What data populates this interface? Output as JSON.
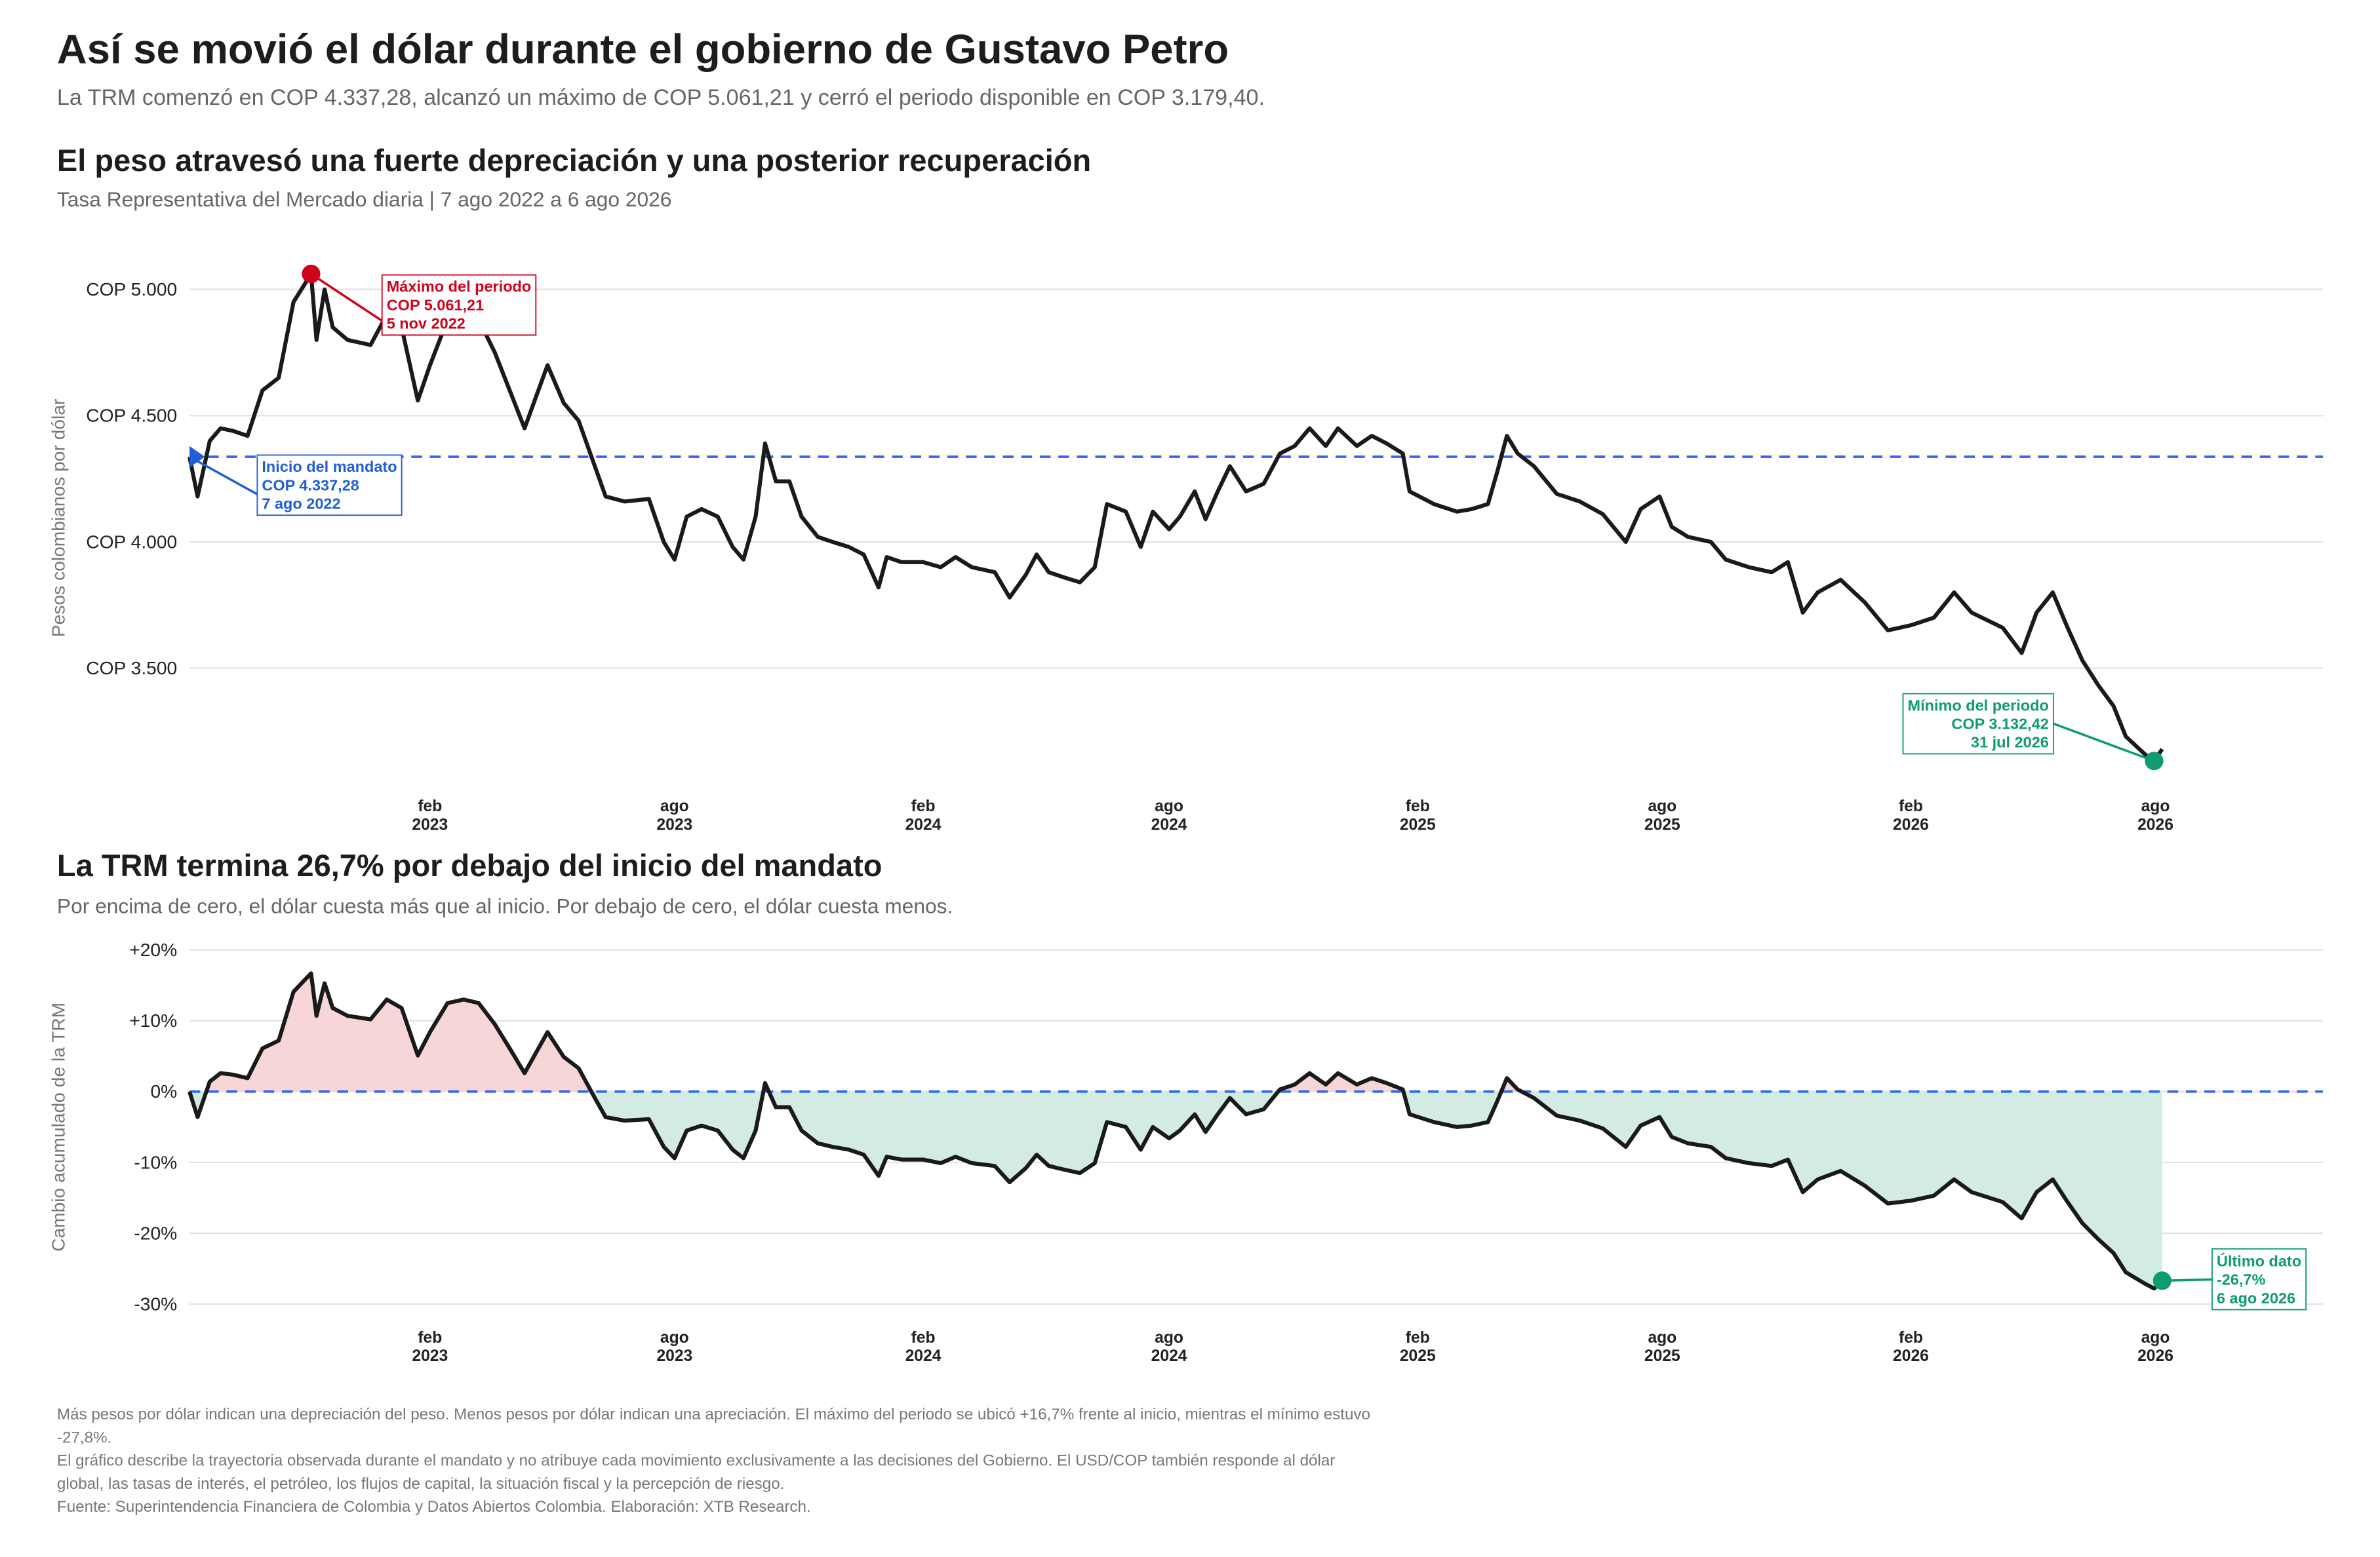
{
  "title": "Así se movió el dólar durante el gobierno de Gustavo Petro",
  "subtitle": "La TRM comenzó en COP 4.337,28, alcanzó un máximo de COP 5.061,21 y cerró el periodo disponible en COP 3.179,40.",
  "footnotes": [
    "Más pesos por dólar indican una depreciación del peso. Menos pesos por dólar indican una apreciación. El máximo del periodo se ubicó +16,7% frente al inicio, mientras el mínimo estuvo -27,8%.",
    "El gráfico describe la trayectoria observada durante el mandato y no atribuye cada movimiento exclusivamente a las decisiones del Gobierno. El USD/COP también responde al dólar global, las tasas de interés, el petróleo, los flujos de capital, la situación fiscal y la percepción de riesgo.",
    "Fuente: Superintendencia Financiera de Colombia y Datos Abiertos Colombia. Elaboración: XTB Research."
  ],
  "chart_data": [
    {
      "type": "line",
      "title": "El peso atravesó una fuerte depreciación y una posterior recuperación",
      "subtitle": "Tasa Representativa del Mercado diaria | 7 ago 2022 a 6 ago 2026",
      "ylabel": "Pesos colombianos por dólar",
      "x": [
        "2022-08-07",
        "2022-08-13",
        "2022-08-22",
        "2022-08-30",
        "2022-09-08",
        "2022-09-19",
        "2022-09-30",
        "2022-10-12",
        "2022-10-23",
        "2022-11-05",
        "2022-11-09",
        "2022-11-15",
        "2022-11-21",
        "2022-12-02",
        "2022-12-19",
        "2022-12-31",
        "2023-01-11",
        "2023-01-23",
        "2023-02-01",
        "2023-02-14",
        "2023-02-26",
        "2023-03-09",
        "2023-03-21",
        "2023-04-01",
        "2023-04-12",
        "2023-04-29",
        "2023-05-11",
        "2023-05-22",
        "2023-06-03",
        "2023-06-11",
        "2023-06-25",
        "2023-07-13",
        "2023-07-24",
        "2023-08-01",
        "2023-08-10",
        "2023-08-21",
        "2023-09-02",
        "2023-09-13",
        "2023-09-21",
        "2023-09-30",
        "2023-10-07",
        "2023-10-15",
        "2023-10-25",
        "2023-11-03",
        "2023-11-15",
        "2023-11-26",
        "2023-12-08",
        "2023-12-19",
        "2023-12-30",
        "2024-01-05",
        "2024-01-16",
        "2024-02-01",
        "2024-02-14",
        "2024-02-25",
        "2024-03-08",
        "2024-03-25",
        "2024-04-05",
        "2024-04-17",
        "2024-04-25",
        "2024-05-04",
        "2024-05-15",
        "2024-05-27",
        "2024-06-07",
        "2024-06-16",
        "2024-06-30",
        "2024-07-11",
        "2024-07-20",
        "2024-08-01",
        "2024-08-09",
        "2024-08-20",
        "2024-08-28",
        "2024-09-06",
        "2024-09-15",
        "2024-09-27",
        "2024-10-10",
        "2024-10-22",
        "2024-11-02",
        "2024-11-13",
        "2024-11-25",
        "2024-12-04",
        "2024-12-18",
        "2024-12-29",
        "2025-01-09",
        "2025-01-21",
        "2025-01-26",
        "2025-02-13",
        "2025-03-02",
        "2025-03-13",
        "2025-03-25",
        "2025-04-01",
        "2025-04-08",
        "2025-04-16",
        "2025-04-28",
        "2025-05-15",
        "2025-06-01",
        "2025-06-18",
        "2025-07-05",
        "2025-07-16",
        "2025-07-30",
        "2025-08-08",
        "2025-08-20",
        "2025-09-06",
        "2025-09-17",
        "2025-10-04",
        "2025-10-21",
        "2025-11-02",
        "2025-11-13",
        "2025-11-24",
        "2025-12-11",
        "2025-12-29",
        "2026-01-15",
        "2026-02-01",
        "2026-02-18",
        "2026-03-05",
        "2026-03-18",
        "2026-04-10",
        "2026-04-24",
        "2026-05-05",
        "2026-05-17",
        "2026-05-28",
        "2026-06-08",
        "2026-06-20",
        "2026-07-01",
        "2026-07-10",
        "2026-07-24",
        "2026-07-31",
        "2026-08-06"
      ],
      "series": [
        {
          "color": "#1a1a1a",
          "values": [
            4337.28,
            4180,
            4400,
            4450,
            4440,
            4420,
            4600,
            4650,
            4950,
            5061.21,
            4800,
            5000,
            4850,
            4800,
            4780,
            4900,
            4850,
            4560,
            4700,
            4880,
            4900,
            4880,
            4750,
            4600,
            4450,
            4700,
            4550,
            4480,
            4300,
            4180,
            4160,
            4170,
            4000,
            3930,
            4100,
            4130,
            4100,
            3980,
            3930,
            4100,
            4390,
            4240,
            4240,
            4100,
            4020,
            4000,
            3980,
            3950,
            3820,
            3940,
            3920,
            3920,
            3900,
            3940,
            3900,
            3880,
            3780,
            3870,
            3950,
            3880,
            3860,
            3840,
            3900,
            4150,
            4120,
            3980,
            4120,
            4050,
            4100,
            4200,
            4090,
            4200,
            4300,
            4200,
            4230,
            4350,
            4380,
            4450,
            4380,
            4450,
            4380,
            4420,
            4390,
            4350,
            4200,
            4150,
            4120,
            4130,
            4150,
            4280,
            4420,
            4350,
            4300,
            4190,
            4160,
            4110,
            4000,
            4130,
            4180,
            4060,
            4020,
            4000,
            3930,
            3900,
            3880,
            3920,
            3720,
            3800,
            3850,
            3760,
            3650,
            3670,
            3700,
            3800,
            3720,
            3660,
            3560,
            3720,
            3800,
            3660,
            3530,
            3430,
            3350,
            3230,
            3160,
            3132.42,
            3179.4
          ]
        }
      ],
      "xlim": [
        "2022-08-07",
        "2026-12-03"
      ],
      "xticks": [
        {
          "value": "2023-02-01",
          "label": [
            "feb",
            "2023"
          ]
        },
        {
          "value": "2023-08-01",
          "label": [
            "ago",
            "2023"
          ]
        },
        {
          "value": "2024-02-01",
          "label": [
            "feb",
            "2024"
          ]
        },
        {
          "value": "2024-08-01",
          "label": [
            "ago",
            "2024"
          ]
        },
        {
          "value": "2025-02-01",
          "label": [
            "feb",
            "2025"
          ]
        },
        {
          "value": "2025-08-01",
          "label": [
            "ago",
            "2025"
          ]
        },
        {
          "value": "2026-02-01",
          "label": [
            "feb",
            "2026"
          ]
        },
        {
          "value": "2026-08-01",
          "label": [
            "ago",
            "2026"
          ]
        }
      ],
      "ylim": [
        3070,
        5120
      ],
      "yticks": [
        {
          "value": 3500,
          "label": "COP 3.500"
        },
        {
          "value": 4000,
          "label": "COP 4.000"
        },
        {
          "value": 4500,
          "label": "COP 4.500"
        },
        {
          "value": 5000,
          "label": "COP 5.000"
        }
      ],
      "grid": true,
      "reference_line": {
        "value": 4337.28,
        "color": "#3366ee"
      },
      "annotations": [
        {
          "label": "Máximo del periodo",
          "value": 5061.21,
          "value_label": "COP 5.061,21",
          "date": "2022-11-05",
          "date_label": "5 nov 2022",
          "color": "#d0021b",
          "marker": "circle"
        },
        {
          "label": "Inicio del mandato",
          "value": 4337.28,
          "value_label": "COP 4.337,28",
          "date": "2022-08-07",
          "date_label": "7 ago 2022",
          "color": "#1f5fd6",
          "marker": "triangle"
        },
        {
          "label": "Mínimo del periodo",
          "value": 3132.42,
          "value_label": "COP 3.132,42",
          "date": "2026-07-31",
          "date_label": "31 jul 2026",
          "color": "#0f9b72",
          "marker": "circle"
        }
      ]
    },
    {
      "type": "line",
      "title": "La TRM termina 26,7% por debajo del inicio del mandato",
      "subtitle": "Por encima de cero, el dólar cuesta más que al inicio. Por debajo de cero, el dólar cuesta menos.",
      "ylabel": "Cambio acumulado de la TRM",
      "x": [
        "2022-08-07",
        "2022-08-13",
        "2022-08-22",
        "2022-08-30",
        "2022-09-08",
        "2022-09-19",
        "2022-09-30",
        "2022-10-12",
        "2022-10-23",
        "2022-11-05",
        "2022-11-09",
        "2022-11-15",
        "2022-11-21",
        "2022-12-02",
        "2022-12-19",
        "2022-12-31",
        "2023-01-11",
        "2023-01-23",
        "2023-02-01",
        "2023-02-14",
        "2023-02-26",
        "2023-03-09",
        "2023-03-21",
        "2023-04-01",
        "2023-04-12",
        "2023-04-29",
        "2023-05-11",
        "2023-05-22",
        "2023-06-03",
        "2023-06-11",
        "2023-06-25",
        "2023-07-13",
        "2023-07-24",
        "2023-08-01",
        "2023-08-10",
        "2023-08-21",
        "2023-09-02",
        "2023-09-13",
        "2023-09-21",
        "2023-09-30",
        "2023-10-07",
        "2023-10-15",
        "2023-10-25",
        "2023-11-03",
        "2023-11-15",
        "2023-11-26",
        "2023-12-08",
        "2023-12-19",
        "2023-12-30",
        "2024-01-05",
        "2024-01-16",
        "2024-02-01",
        "2024-02-14",
        "2024-02-25",
        "2024-03-08",
        "2024-03-25",
        "2024-04-05",
        "2024-04-17",
        "2024-04-25",
        "2024-05-04",
        "2024-05-15",
        "2024-05-27",
        "2024-06-07",
        "2024-06-16",
        "2024-06-30",
        "2024-07-11",
        "2024-07-20",
        "2024-08-01",
        "2024-08-09",
        "2024-08-20",
        "2024-08-28",
        "2024-09-06",
        "2024-09-15",
        "2024-09-27",
        "2024-10-10",
        "2024-10-22",
        "2024-11-02",
        "2024-11-13",
        "2024-11-25",
        "2024-12-04",
        "2024-12-18",
        "2024-12-29",
        "2025-01-09",
        "2025-01-21",
        "2025-01-26",
        "2025-02-13",
        "2025-03-02",
        "2025-03-13",
        "2025-03-25",
        "2025-04-01",
        "2025-04-08",
        "2025-04-16",
        "2025-04-28",
        "2025-05-15",
        "2025-06-01",
        "2025-06-18",
        "2025-07-05",
        "2025-07-16",
        "2025-07-30",
        "2025-08-08",
        "2025-08-20",
        "2025-09-06",
        "2025-09-17",
        "2025-10-04",
        "2025-10-21",
        "2025-11-02",
        "2025-11-13",
        "2025-11-24",
        "2025-12-11",
        "2025-12-29",
        "2026-01-15",
        "2026-02-01",
        "2026-02-18",
        "2026-03-05",
        "2026-03-18",
        "2026-04-10",
        "2026-04-24",
        "2026-05-05",
        "2026-05-17",
        "2026-05-28",
        "2026-06-08",
        "2026-06-20",
        "2026-07-01",
        "2026-07-10",
        "2026-07-24",
        "2026-07-31",
        "2026-08-06"
      ],
      "series": [
        {
          "color": "#1a1a1a",
          "values": [
            0,
            -3.6,
            1.4,
            2.6,
            2.4,
            1.9,
            6.1,
            7.2,
            14.1,
            16.7,
            10.7,
            15.3,
            11.8,
            10.7,
            10.2,
            13.0,
            11.8,
            5.1,
            8.4,
            12.5,
            13.0,
            12.5,
            9.5,
            6.1,
            2.6,
            8.4,
            4.9,
            3.3,
            -0.9,
            -3.6,
            -4.1,
            -3.9,
            -7.8,
            -9.4,
            -5.5,
            -4.8,
            -5.5,
            -8.2,
            -9.4,
            -5.5,
            1.2,
            -2.2,
            -2.2,
            -5.5,
            -7.3,
            -7.8,
            -8.2,
            -8.9,
            -11.9,
            -9.2,
            -9.6,
            -9.6,
            -10.1,
            -9.2,
            -10.1,
            -10.5,
            -12.8,
            -10.8,
            -8.9,
            -10.5,
            -11.0,
            -11.5,
            -10.1,
            -4.3,
            -5.0,
            -8.2,
            -5.0,
            -6.6,
            -5.5,
            -3.2,
            -5.7,
            -3.2,
            -0.9,
            -3.2,
            -2.5,
            0.3,
            1.0,
            2.6,
            1.0,
            2.6,
            1.0,
            1.9,
            1.2,
            0.3,
            -3.2,
            -4.3,
            -5.0,
            -4.8,
            -4.3,
            -1.3,
            1.9,
            0.3,
            -0.9,
            -3.4,
            -4.1,
            -5.2,
            -7.8,
            -4.8,
            -3.6,
            -6.4,
            -7.3,
            -7.8,
            -9.4,
            -10.1,
            -10.5,
            -9.6,
            -14.2,
            -12.4,
            -11.2,
            -13.3,
            -15.8,
            -15.4,
            -14.7,
            -12.4,
            -14.2,
            -15.6,
            -17.9,
            -14.2,
            -12.4,
            -15.6,
            -18.6,
            -20.9,
            -22.8,
            -25.5,
            -27.1,
            -27.8,
            -26.7
          ]
        }
      ],
      "xlim": [
        "2022-08-07",
        "2026-12-03"
      ],
      "xticks": [
        {
          "value": "2023-02-01",
          "label": [
            "feb",
            "2023"
          ]
        },
        {
          "value": "2023-08-01",
          "label": [
            "ago",
            "2023"
          ]
        },
        {
          "value": "2024-02-01",
          "label": [
            "feb",
            "2024"
          ]
        },
        {
          "value": "2024-08-01",
          "label": [
            "ago",
            "2024"
          ]
        },
        {
          "value": "2025-02-01",
          "label": [
            "feb",
            "2025"
          ]
        },
        {
          "value": "2025-08-01",
          "label": [
            "ago",
            "2025"
          ]
        },
        {
          "value": "2026-02-01",
          "label": [
            "feb",
            "2026"
          ]
        },
        {
          "value": "2026-08-01",
          "label": [
            "ago",
            "2026"
          ]
        }
      ],
      "ylim": [
        -31,
        21
      ],
      "yticks": [
        {
          "value": -30,
          "label": "-30%"
        },
        {
          "value": -20,
          "label": "-20%"
        },
        {
          "value": -10,
          "label": "-10%"
        },
        {
          "value": 0,
          "label": "0%"
        },
        {
          "value": 10,
          "label": "+10%"
        },
        {
          "value": 20,
          "label": "+20%"
        }
      ],
      "grid": true,
      "reference_line": {
        "value": 0,
        "color": "#3366ee"
      },
      "fill": {
        "above": "#f7d6d7",
        "below": "#d2ece3"
      },
      "annotations": [
        {
          "label": "Último dato",
          "value": -26.7,
          "value_label": "-26,7%",
          "date": "2026-08-06",
          "date_label": "6 ago 2026",
          "color": "#0f9b72",
          "marker": "circle"
        }
      ]
    }
  ]
}
